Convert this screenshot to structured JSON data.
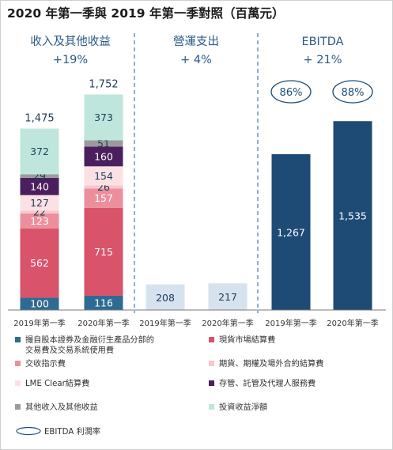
{
  "title": "2020 年第一季與 2019 年第一季對照（百萬元）",
  "chart_data": {
    "type": "bar",
    "stacked": true,
    "panels": [
      {
        "title": "收入及其他收益",
        "growth": "+19%",
        "categories": [
          "2019年第一季",
          "2020年第一季"
        ],
        "totals": [
          1475,
          1752
        ],
        "series": [
          {
            "name": "撮自股本證券及金融衍生產品分部的交易費及交易系統使用費",
            "color": "#2e6b93",
            "label_color": "#ffffff",
            "values": [
              100,
              116
            ]
          },
          {
            "name": "現貨市場結算費",
            "color": "#d9536a",
            "label_color": "#ffffff",
            "values": [
              562,
              715
            ]
          },
          {
            "name": "交收指示費",
            "color": "#ec8f9c",
            "label_color": "#ffffff",
            "values": [
              123,
              157
            ]
          },
          {
            "name": "期貨、期權及場外合約結算費",
            "color": "#f6c8cd",
            "label_color": "#1f3b5a",
            "values": [
              22,
              26
            ]
          },
          {
            "name": "LME Clear結算費",
            "color": "#fbe1e4",
            "label_color": "#1f3b5a",
            "values": [
              127,
              154
            ]
          },
          {
            "name": "存管、託管及代理人服務費",
            "color": "#4b1f5e",
            "label_color": "#ffffff",
            "values": [
              140,
              160
            ]
          },
          {
            "name": "其他收入及其他收益",
            "color": "#9b9b9b",
            "label_color": "#1f3b5a",
            "values": [
              29,
              51
            ]
          },
          {
            "name": "投資收益淨額",
            "color": "#bfe6dc",
            "label_color": "#1f3b5a",
            "values": [
              372,
              373
            ]
          }
        ]
      },
      {
        "title": "營運支出",
        "growth": "+ 4%",
        "categories": [
          "2019年第一季",
          "2020年第一季"
        ],
        "values": [
          208,
          217
        ],
        "color": "#d6e3ee",
        "label_color": "#1f3b5a"
      },
      {
        "title": "EBITDA",
        "growth": "+ 21%",
        "categories": [
          "2019年第一季",
          "2020年第一季"
        ],
        "values": [
          1267,
          1535
        ],
        "margins": [
          "86%",
          "88%"
        ],
        "color": "#1d4b75",
        "label_color": "#ffffff"
      }
    ],
    "ylim": [
      0,
      1800
    ],
    "legend": [
      {
        "text": "撮自股本證券及金融衍生產品分部的",
        "text2": "交易費及交易系統使用費",
        "color": "#2e6b93"
      },
      {
        "text": "現貨市場結算費",
        "color": "#d9536a"
      },
      {
        "text": "交收指示費",
        "color": "#ec8f9c"
      },
      {
        "text": "期貨、期權及場外合約結算費",
        "color": "#f6c8cd"
      },
      {
        "text": "LME Clear結算費",
        "color": "#fbe1e4"
      },
      {
        "text": "存管、託管及代理人服務費",
        "color": "#4b1f5e"
      },
      {
        "text": "其他收入及其他收益",
        "color": "#9b9b9b"
      },
      {
        "text": "投資收益淨額",
        "color": "#bfe6dc"
      }
    ],
    "margin_legend": "EBITDA 利潤率"
  }
}
